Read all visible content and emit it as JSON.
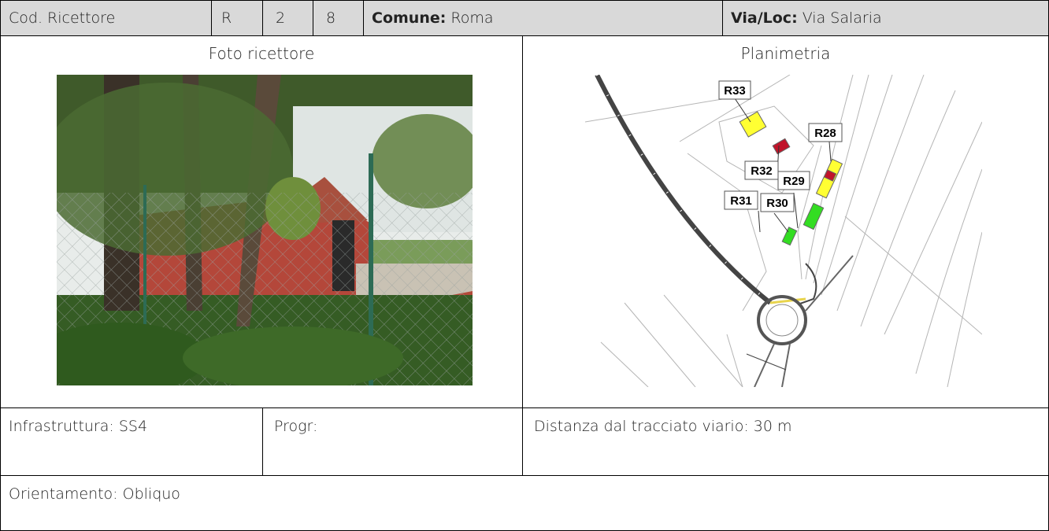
{
  "header": {
    "code_label": "Cod. Ricettore",
    "code": [
      "R",
      "2",
      "8"
    ],
    "comune_label": "Comune:",
    "comune": "Roma",
    "via_label": "Via/Loc:",
    "via": "Via Salaria"
  },
  "photo": {
    "title": "Foto ricettore"
  },
  "map": {
    "title": "Planimetria",
    "labels": [
      "R33",
      "R28",
      "R32",
      "R29",
      "R31",
      "R30"
    ]
  },
  "details": {
    "infrastructure": "Infrastruttura: SS4",
    "progr": "Progr:",
    "distance": "Distanza dal tracciato viario: 30 m",
    "orientation": "Orientamento: Obliquo"
  }
}
